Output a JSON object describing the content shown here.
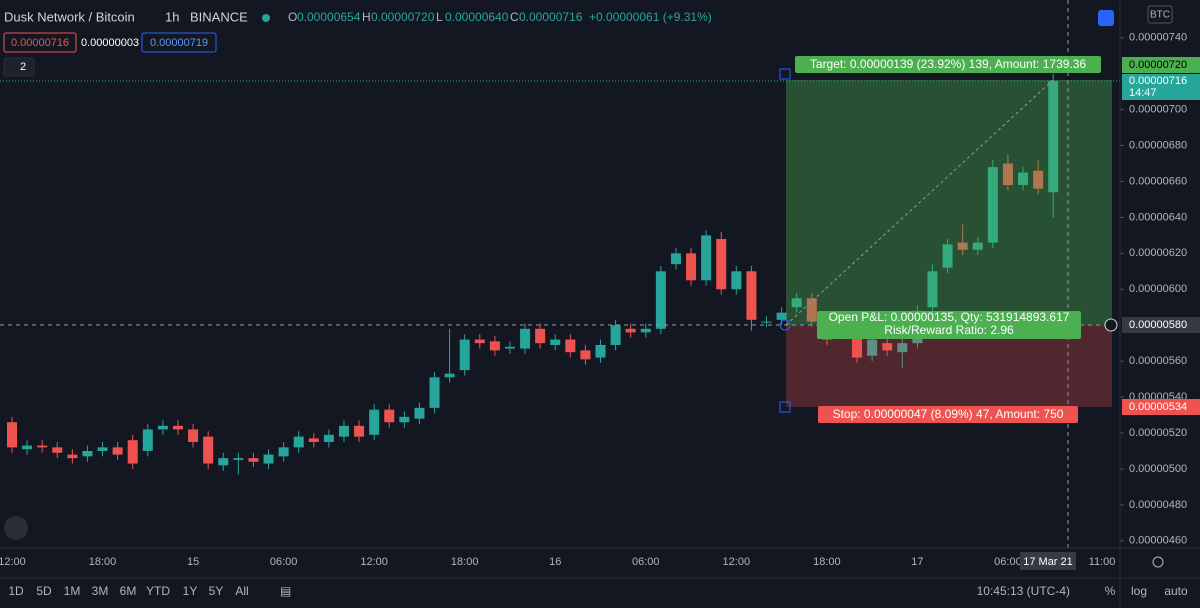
{
  "header": {
    "symbol": "Dusk Network / Bitcoin",
    "interval": "1h",
    "exchange": "BINANCE",
    "ohlc": [
      {
        "key": "O",
        "value": "0.00000654"
      },
      {
        "key": "H",
        "value": "0.00000720"
      },
      {
        "key": "L",
        "value": "0.00000640"
      },
      {
        "key": "C",
        "value": "0.00000716"
      }
    ],
    "change": "+0.00000061 (+9.31%)"
  },
  "quote": {
    "bid": "0.00000716",
    "spread": "0.00000003",
    "ask": "0.00000719"
  },
  "indicator_count": "2",
  "currency": "BTC",
  "price_markers": {
    "target": "0.00000720",
    "last": "0.00000716",
    "countdown": "14:47",
    "crosshair": "0.00000580",
    "stop": "0.00000534"
  },
  "position": {
    "target_label": "Target: 0.00000139 (23.92%) 139, Amount: 1739.36",
    "pnl_label": "Open P&L: 0.00000135, Qty: 531914893.617",
    "ratio_label": "Risk/Reward Ratio: 2.96",
    "stop_label": "Stop: 0.00000047 (8.09%) 47, Amount: 750"
  },
  "time_axis": {
    "crosshair_label": "17 Mar 21",
    "extra_label": "11:00"
  },
  "toolbar": {
    "ranges": [
      "1D",
      "5D",
      "1M",
      "3M",
      "6M",
      "YTD",
      "1Y",
      "5Y",
      "All"
    ],
    "clock": "10:45:13 (UTC-4)",
    "options": [
      "%",
      "log",
      "auto"
    ]
  },
  "chart_data": {
    "type": "candlestick",
    "up_color": "#26a69a",
    "down_color": "#ef5350",
    "grid": false,
    "categories": [
      "12:00",
      null,
      null,
      null,
      null,
      null,
      "18:00",
      null,
      null,
      null,
      null,
      null,
      "15",
      null,
      null,
      null,
      null,
      null,
      "06:00",
      null,
      null,
      null,
      null,
      null,
      "12:00",
      null,
      null,
      null,
      null,
      null,
      "18:00",
      null,
      null,
      null,
      null,
      null,
      "16",
      null,
      null,
      null,
      null,
      null,
      "06:00",
      null,
      null,
      null,
      null,
      null,
      "12:00",
      null,
      null,
      null,
      null,
      null,
      "18:00",
      null,
      null,
      null,
      null,
      null,
      "17",
      null,
      null,
      null,
      null,
      null,
      "06:00",
      null,
      null,
      null
    ],
    "open": [
      5.26e-06,
      5.11e-06,
      5.13e-06,
      5.12e-06,
      5.08e-06,
      5.07e-06,
      5.1e-06,
      5.12e-06,
      5.16e-06,
      5.1e-06,
      5.22e-06,
      5.24e-06,
      5.22e-06,
      5.18e-06,
      5.02e-06,
      5.05e-06,
      5.06e-06,
      5.03e-06,
      5.07e-06,
      5.12e-06,
      5.17e-06,
      5.15e-06,
      5.18e-06,
      5.24e-06,
      5.19e-06,
      5.33e-06,
      5.26e-06,
      5.28e-06,
      5.34e-06,
      5.51e-06,
      5.55e-06,
      5.72e-06,
      5.71e-06,
      5.67e-06,
      5.67e-06,
      5.78e-06,
      5.69e-06,
      5.72e-06,
      5.66e-06,
      5.62e-06,
      5.69e-06,
      5.78e-06,
      5.76e-06,
      5.78e-06,
      6.14e-06,
      6.2e-06,
      6.05e-06,
      6.28e-06,
      6e-06,
      6.1e-06,
      5.82e-06,
      5.83e-06,
      5.9e-06,
      5.95e-06,
      5.83e-06,
      5.75e-06,
      5.74e-06,
      5.63e-06,
      5.7e-06,
      5.65e-06,
      5.7e-06,
      5.9e-06,
      6.12e-06,
      6.26e-06,
      6.22e-06,
      6.26e-06,
      6.7e-06,
      6.58e-06,
      6.66e-06,
      6.54e-06
    ],
    "high": [
      5.29e-06,
      5.16e-06,
      5.16e-06,
      5.15e-06,
      5.11e-06,
      5.13e-06,
      5.15e-06,
      5.15e-06,
      5.19e-06,
      5.25e-06,
      5.27e-06,
      5.27e-06,
      5.25e-06,
      5.21e-06,
      5.09e-06,
      5.09e-06,
      5.09e-06,
      5.11e-06,
      5.15e-06,
      5.21e-06,
      5.2e-06,
      5.22e-06,
      5.27e-06,
      5.27e-06,
      5.36e-06,
      5.36e-06,
      5.32e-06,
      5.37e-06,
      5.54e-06,
      5.78e-06,
      5.75e-06,
      5.75e-06,
      5.74e-06,
      5.71e-06,
      5.81e-06,
      5.81e-06,
      5.75e-06,
      5.75e-06,
      5.69e-06,
      5.72e-06,
      5.83e-06,
      5.81e-06,
      5.81e-06,
      6.13e-06,
      6.23e-06,
      6.23e-06,
      6.33e-06,
      6.32e-06,
      6.13e-06,
      6.13e-06,
      5.85e-06,
      5.9e-06,
      5.98e-06,
      5.98e-06,
      5.86e-06,
      5.78e-06,
      5.77e-06,
      5.75e-06,
      5.73e-06,
      5.73e-06,
      5.91e-06,
      6.14e-06,
      6.28e-06,
      6.36e-06,
      6.29e-06,
      6.72e-06,
      6.75e-06,
      6.68e-06,
      6.72e-06,
      7.2e-06
    ],
    "low": [
      5.09e-06,
      5.08e-06,
      5.09e-06,
      5.06e-06,
      5.03e-06,
      5.04e-06,
      5.07e-06,
      5.05e-06,
      5e-06,
      5.07e-06,
      5.19e-06,
      5.19e-06,
      5.12e-06,
      5e-06,
      4.99e-06,
      4.97e-06,
      5.01e-06,
      5e-06,
      5.04e-06,
      5.09e-06,
      5.12e-06,
      5.12e-06,
      5.15e-06,
      5.15e-06,
      5.16e-06,
      5.23e-06,
      5.23e-06,
      5.25e-06,
      5.31e-06,
      5.48e-06,
      5.52e-06,
      5.67e-06,
      5.63e-06,
      5.64e-06,
      5.64e-06,
      5.67e-06,
      5.66e-06,
      5.62e-06,
      5.58e-06,
      5.59e-06,
      5.66e-06,
      5.73e-06,
      5.73e-06,
      5.75e-06,
      6.11e-06,
      6.02e-06,
      6.02e-06,
      5.97e-06,
      5.97e-06,
      5.77e-06,
      5.79e-06,
      5.8e-06,
      5.87e-06,
      5.79e-06,
      5.69e-06,
      5.72e-06,
      5.59e-06,
      5.6e-06,
      5.63e-06,
      5.56e-06,
      5.67e-06,
      5.87e-06,
      6.09e-06,
      6.19e-06,
      6.19e-06,
      6.23e-06,
      6.55e-06,
      6.55e-06,
      6.53e-06,
      6.4e-06
    ],
    "close": [
      5.12e-06,
      5.13e-06,
      5.12e-06,
      5.09e-06,
      5.06e-06,
      5.1e-06,
      5.12e-06,
      5.08e-06,
      5.03e-06,
      5.22e-06,
      5.24e-06,
      5.22e-06,
      5.15e-06,
      5.03e-06,
      5.06e-06,
      5.06e-06,
      5.04e-06,
      5.08e-06,
      5.12e-06,
      5.18e-06,
      5.15e-06,
      5.19e-06,
      5.24e-06,
      5.18e-06,
      5.33e-06,
      5.26e-06,
      5.29e-06,
      5.34e-06,
      5.51e-06,
      5.53e-06,
      5.72e-06,
      5.7e-06,
      5.66e-06,
      5.68e-06,
      5.78e-06,
      5.7e-06,
      5.72e-06,
      5.65e-06,
      5.61e-06,
      5.69e-06,
      5.8e-06,
      5.76e-06,
      5.78e-06,
      6.1e-06,
      6.2e-06,
      6.05e-06,
      6.3e-06,
      6e-06,
      6.1e-06,
      5.83e-06,
      5.82e-06,
      5.87e-06,
      5.95e-06,
      5.82e-06,
      5.72e-06,
      5.75e-06,
      5.62e-06,
      5.72e-06,
      5.66e-06,
      5.7e-06,
      5.88e-06,
      6.1e-06,
      6.25e-06,
      6.22e-06,
      6.26e-06,
      6.68e-06,
      6.58e-06,
      6.65e-06,
      6.56e-06,
      7.16e-06
    ],
    "ylim": [
      4.56e-06,
      7.61e-06
    ],
    "yticks": [
      {
        "value": 7.4e-06,
        "label": "0.00000740"
      },
      {
        "value": 7e-06,
        "label": "0.00000700"
      },
      {
        "value": 6.8e-06,
        "label": "0.00000680"
      },
      {
        "value": 6.6e-06,
        "label": "0.00000660"
      },
      {
        "value": 6.4e-06,
        "label": "0.00000640"
      },
      {
        "value": 6.2e-06,
        "label": "0.00000620"
      },
      {
        "value": 6e-06,
        "label": "0.00000600"
      },
      {
        "value": 5.6e-06,
        "label": "0.00000560"
      },
      {
        "value": 5.4e-06,
        "label": "0.00000540"
      },
      {
        "value": 5.2e-06,
        "label": "0.00000520"
      },
      {
        "value": 5e-06,
        "label": "0.00000500"
      },
      {
        "value": 4.8e-06,
        "label": "0.00000480"
      },
      {
        "value": 4.6e-06,
        "label": "0.00000460"
      }
    ]
  }
}
